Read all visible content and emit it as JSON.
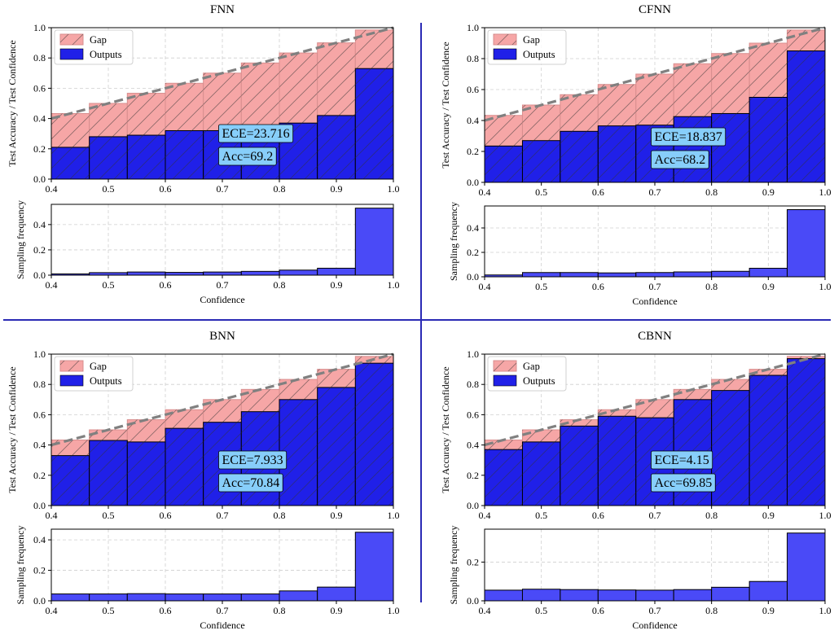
{
  "figure": {
    "divider_color": "#2b2bb5",
    "colors": {
      "gap_fill": "#f6a6a6",
      "gap_edge": "#d88e8e",
      "outputs_fill": "#2020e8",
      "frequency_fill": "#4a4af7",
      "identity_line": "#808080",
      "ece_box": "#87cefa"
    }
  },
  "chart_data": [
    {
      "type": "bar",
      "title": "FNN",
      "reliability": {
        "ylabel": "Test Accuracy / Test Confidence",
        "xlim": [
          0.4,
          1.0
        ],
        "ylim": [
          0.0,
          1.0
        ],
        "xticks": [
          "0.4",
          "0.5",
          "0.6",
          "0.7",
          "0.8",
          "0.9",
          "1.0"
        ],
        "yticks": [
          "0.0",
          "0.2",
          "0.4",
          "0.6",
          "0.8",
          "1.0"
        ],
        "bin_edges": [
          0.4,
          0.4667,
          0.5333,
          0.6,
          0.6667,
          0.7333,
          0.8,
          0.8667,
          0.9333,
          1.0
        ],
        "series": [
          {
            "name": "Gap",
            "values": [
              0.433,
              0.5,
              0.567,
              0.633,
              0.7,
              0.767,
              0.833,
              0.9,
              0.985
            ]
          },
          {
            "name": "Outputs",
            "values": [
              0.21,
              0.28,
              0.29,
              0.32,
              0.32,
              0.33,
              0.37,
              0.42,
              0.73
            ]
          }
        ],
        "ece_label": "ECE=23.716",
        "acc_label": "Acc=69.2",
        "grid": true,
        "legend_position": "top-left"
      },
      "frequency": {
        "ylabel": "Sampling frequency",
        "xlabel": "Confidence",
        "xticks": [
          "0.4",
          "0.5",
          "0.6",
          "0.7",
          "0.8",
          "0.9",
          "1.0"
        ],
        "yticks": [
          "0.0",
          "0.2",
          "0.4"
        ],
        "ylim": [
          0.0,
          0.56
        ],
        "values": [
          0.01,
          0.02,
          0.025,
          0.022,
          0.025,
          0.03,
          0.04,
          0.055,
          0.53
        ]
      }
    },
    {
      "type": "bar",
      "title": "CFNN",
      "reliability": {
        "ylabel": "Test Accuracy / Test Confidence",
        "xlim": [
          0.4,
          1.0
        ],
        "ylim": [
          0.0,
          1.0
        ],
        "xticks": [
          "0.4",
          "0.5",
          "0.6",
          "0.7",
          "0.8",
          "0.9",
          "1.0"
        ],
        "yticks": [
          "0.0",
          "0.2",
          "0.4",
          "0.6",
          "0.8",
          "1.0"
        ],
        "bin_edges": [
          0.4,
          0.4667,
          0.5333,
          0.6,
          0.6667,
          0.7333,
          0.8,
          0.8667,
          0.9333,
          1.0
        ],
        "series": [
          {
            "name": "Gap",
            "values": [
              0.433,
              0.5,
              0.567,
              0.633,
              0.7,
              0.767,
              0.833,
              0.9,
              0.985
            ]
          },
          {
            "name": "Outputs",
            "values": [
              0.235,
              0.27,
              0.33,
              0.365,
              0.37,
              0.425,
              0.445,
              0.55,
              0.85
            ]
          }
        ],
        "ece_label": "ECE=18.837",
        "acc_label": "Acc=68.2",
        "grid": true,
        "legend_position": "top-left"
      },
      "frequency": {
        "ylabel": "Sampling frequency",
        "xlabel": "Confidence",
        "xticks": [
          "0.4",
          "0.5",
          "0.6",
          "0.7",
          "0.8",
          "0.9",
          "1.0"
        ],
        "yticks": [
          "0.0",
          "0.2",
          "0.4"
        ],
        "ylim": [
          0.0,
          0.58
        ],
        "values": [
          0.015,
          0.035,
          0.035,
          0.032,
          0.035,
          0.04,
          0.045,
          0.07,
          0.55
        ]
      }
    },
    {
      "type": "bar",
      "title": "BNN",
      "reliability": {
        "ylabel": "Test Accuracy / Test Confidence",
        "xlim": [
          0.4,
          1.0
        ],
        "ylim": [
          0.0,
          1.0
        ],
        "xticks": [
          "0.4",
          "0.5",
          "0.6",
          "0.7",
          "0.8",
          "0.9",
          "1.0"
        ],
        "yticks": [
          "0.0",
          "0.2",
          "0.4",
          "0.6",
          "0.8",
          "1.0"
        ],
        "bin_edges": [
          0.4,
          0.4667,
          0.5333,
          0.6,
          0.6667,
          0.7333,
          0.8,
          0.8667,
          0.9333,
          1.0
        ],
        "series": [
          {
            "name": "Gap",
            "values": [
              0.433,
              0.5,
              0.567,
              0.633,
              0.7,
              0.767,
              0.833,
              0.9,
              0.985
            ]
          },
          {
            "name": "Outputs",
            "values": [
              0.33,
              0.43,
              0.42,
              0.51,
              0.55,
              0.62,
              0.7,
              0.78,
              0.94
            ]
          }
        ],
        "ece_label": "ECE=7.933",
        "acc_label": "Acc=70.84",
        "grid": true,
        "legend_position": "top-left"
      },
      "frequency": {
        "ylabel": "Sampling frequency",
        "xlabel": "Confidence",
        "xticks": [
          "0.4",
          "0.5",
          "0.6",
          "0.7",
          "0.8",
          "0.9",
          "1.0"
        ],
        "yticks": [
          "0.0",
          "0.2",
          "0.4"
        ],
        "ylim": [
          0.0,
          0.47
        ],
        "values": [
          0.045,
          0.045,
          0.047,
          0.045,
          0.045,
          0.045,
          0.065,
          0.09,
          0.45
        ]
      }
    },
    {
      "type": "bar",
      "title": "CBNN",
      "reliability": {
        "ylabel": "Test Accuracy / Test Confidence",
        "xlim": [
          0.4,
          1.0
        ],
        "ylim": [
          0.0,
          1.0
        ],
        "xticks": [
          "0.4",
          "0.5",
          "0.6",
          "0.7",
          "0.8",
          "0.9",
          "1.0"
        ],
        "yticks": [
          "0.0",
          "0.2",
          "0.4",
          "0.6",
          "0.8",
          "1.0"
        ],
        "bin_edges": [
          0.4,
          0.4667,
          0.5333,
          0.6,
          0.6667,
          0.7333,
          0.8,
          0.8667,
          0.9333,
          1.0
        ],
        "series": [
          {
            "name": "Gap",
            "values": [
              0.433,
              0.5,
              0.567,
              0.633,
              0.7,
              0.767,
              0.833,
              0.9,
              0.985
            ]
          },
          {
            "name": "Outputs",
            "values": [
              0.37,
              0.42,
              0.525,
              0.59,
              0.58,
              0.7,
              0.76,
              0.86,
              0.97
            ]
          }
        ],
        "ece_label": "ECE=4.15",
        "acc_label": "Acc=69.85",
        "grid": true,
        "legend_position": "top-left"
      },
      "frequency": {
        "ylabel": "Sampling frequency",
        "xlabel": "Confidence",
        "xticks": [
          "0.4",
          "0.5",
          "0.6",
          "0.7",
          "0.8",
          "0.9",
          "1.0"
        ],
        "yticks": [
          "0.0",
          "0.2"
        ],
        "ylim": [
          0.0,
          0.37
        ],
        "values": [
          0.055,
          0.06,
          0.058,
          0.056,
          0.055,
          0.058,
          0.07,
          0.1,
          0.35
        ]
      }
    }
  ]
}
